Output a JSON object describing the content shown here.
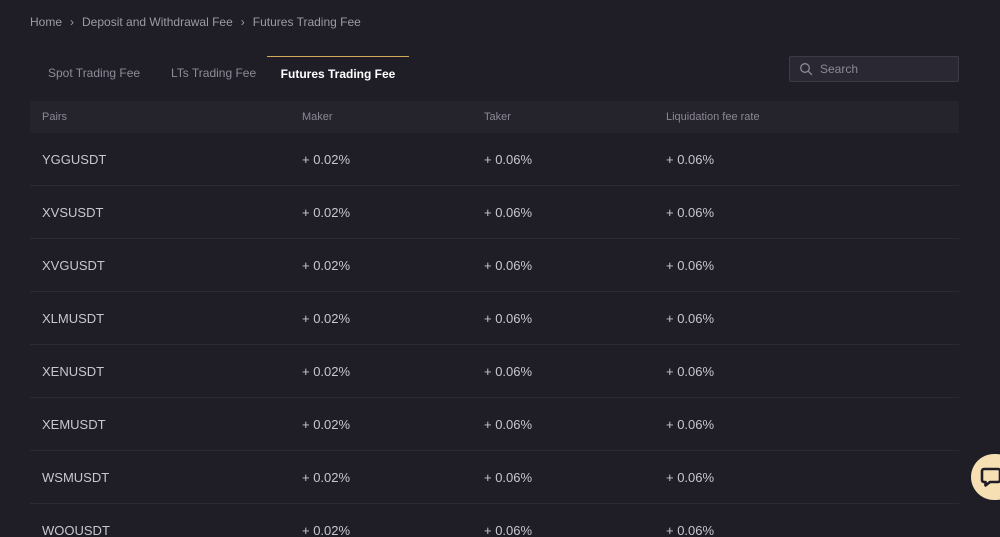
{
  "breadcrumb": {
    "items": [
      "Home",
      "Deposit and Withdrawal Fee",
      "Futures Trading Fee"
    ],
    "separator": "›"
  },
  "tabs": [
    {
      "label": "Spot Trading Fee",
      "active": false
    },
    {
      "label": "LTs Trading Fee",
      "active": false
    },
    {
      "label": "Futures Trading Fee",
      "active": true
    }
  ],
  "search": {
    "placeholder": "Search",
    "value": "",
    "icon": "search-icon"
  },
  "table": {
    "headers": [
      "Pairs",
      "Maker",
      "Taker",
      "Liquidation fee rate"
    ],
    "rows": [
      {
        "pair": "YGGUSDT",
        "maker": "+ 0.02%",
        "taker": "+ 0.06%",
        "liquidation": "+ 0.06%"
      },
      {
        "pair": "XVSUSDT",
        "maker": "+ 0.02%",
        "taker": "+ 0.06%",
        "liquidation": "+ 0.06%"
      },
      {
        "pair": "XVGUSDT",
        "maker": "+ 0.02%",
        "taker": "+ 0.06%",
        "liquidation": "+ 0.06%"
      },
      {
        "pair": "XLMUSDT",
        "maker": "+ 0.02%",
        "taker": "+ 0.06%",
        "liquidation": "+ 0.06%"
      },
      {
        "pair": "XENUSDT",
        "maker": "+ 0.02%",
        "taker": "+ 0.06%",
        "liquidation": "+ 0.06%"
      },
      {
        "pair": "XEMUSDT",
        "maker": "+ 0.02%",
        "taker": "+ 0.06%",
        "liquidation": "+ 0.06%"
      },
      {
        "pair": "WSMUSDT",
        "maker": "+ 0.02%",
        "taker": "+ 0.06%",
        "liquidation": "+ 0.06%"
      },
      {
        "pair": "WOOUSDT",
        "maker": "+ 0.02%",
        "taker": "+ 0.06%",
        "liquidation": "+ 0.06%"
      }
    ]
  },
  "chat": {
    "icon": "chat-bubble-icon"
  },
  "colors": {
    "background": "#1f1d26",
    "accent": "#d4a95a",
    "chat_button": "#f6dfb2"
  }
}
